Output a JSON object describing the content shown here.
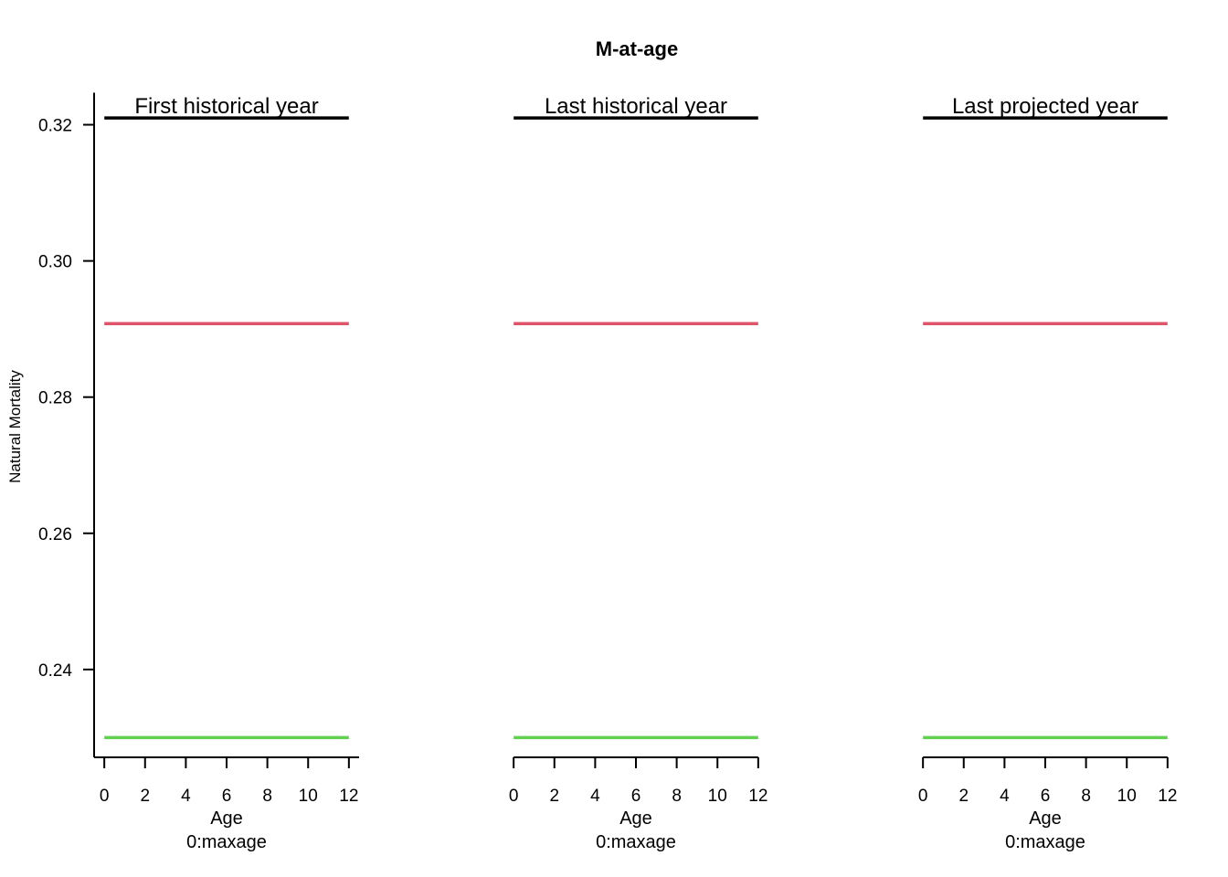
{
  "chart_data": {
    "type": "line",
    "title": "M-at-age",
    "ylabel": "Natural Mortality",
    "ylim": [
      0.2271,
      0.3245
    ],
    "yticks": [
      0.24,
      0.26,
      0.28,
      0.3,
      0.32
    ],
    "ytick_labels": [
      "0.24",
      "0.26",
      "0.28",
      "0.30",
      "0.32"
    ],
    "xlim": [
      -0.5,
      12.5
    ],
    "xticks": [
      0,
      2,
      4,
      6,
      8,
      10,
      12
    ],
    "xtick_labels": [
      "0",
      "2",
      "4",
      "6",
      "8",
      "10",
      "12"
    ],
    "xlabel": "Age",
    "xsublabel": "0:maxage",
    "grid": false,
    "panels": [
      {
        "title": "First historical year",
        "series": [
          {
            "color": "#000000",
            "x": [
              0,
              12
            ],
            "y": [
              0.321,
              0.321
            ]
          },
          {
            "color": "#DF536B",
            "x": [
              0,
              12
            ],
            "y": [
              0.2908,
              0.2908
            ]
          },
          {
            "color": "#61D04F",
            "x": [
              0,
              12
            ],
            "y": [
              0.23,
              0.23
            ]
          }
        ]
      },
      {
        "title": "Last historical year",
        "series": [
          {
            "color": "#000000",
            "x": [
              0,
              12
            ],
            "y": [
              0.321,
              0.321
            ]
          },
          {
            "color": "#DF536B",
            "x": [
              0,
              12
            ],
            "y": [
              0.2908,
              0.2908
            ]
          },
          {
            "color": "#61D04F",
            "x": [
              0,
              12
            ],
            "y": [
              0.23,
              0.23
            ]
          }
        ]
      },
      {
        "title": "Last projected year",
        "series": [
          {
            "color": "#000000",
            "x": [
              0,
              12
            ],
            "y": [
              0.321,
              0.321
            ]
          },
          {
            "color": "#DF536B",
            "x": [
              0,
              12
            ],
            "y": [
              0.2908,
              0.2908
            ]
          },
          {
            "color": "#61D04F",
            "x": [
              0,
              12
            ],
            "y": [
              0.23,
              0.23
            ]
          }
        ]
      }
    ]
  }
}
